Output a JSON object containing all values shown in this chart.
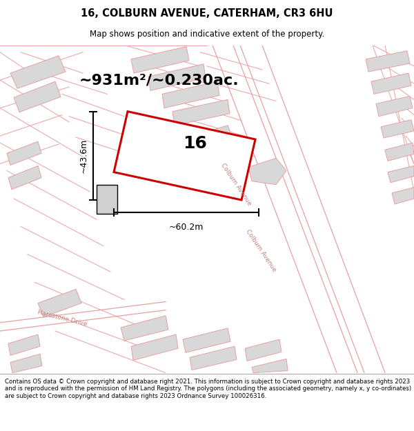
{
  "title_line1": "16, COLBURN AVENUE, CATERHAM, CR3 6HU",
  "title_line2": "Map shows position and indicative extent of the property.",
  "area_text": "~931m²/~0.230ac.",
  "plot_number": "16",
  "dim_width": "~60.2m",
  "dim_height": "~43.6m",
  "street_label": "Colburn Avenue",
  "harestone_label": "Harestone Drive",
  "footer_text": "Contains OS data © Crown copyright and database right 2021. This information is subject to Crown copyright and database rights 2023 and is reproduced with the permission of HM Land Registry. The polygons (including the associated geometry, namely x, y co-ordinates) are subject to Crown copyright and database rights 2023 Ordnance Survey 100026316.",
  "bg_color": "#ffffff",
  "map_bg": "#ffffff",
  "plot_fill": "#ffffff",
  "plot_edge": "#cc0000",
  "road_line_color": "#e8a0a0",
  "building_color": "#d8d8d8",
  "building_edge": "#e8a0a0",
  "parcel_line": "#e8a0a0",
  "dim_color": "#000000",
  "text_color": "#000000",
  "title_color": "#000000",
  "street_text_color": "#c08080",
  "footer_bg": "#f0f0f0"
}
